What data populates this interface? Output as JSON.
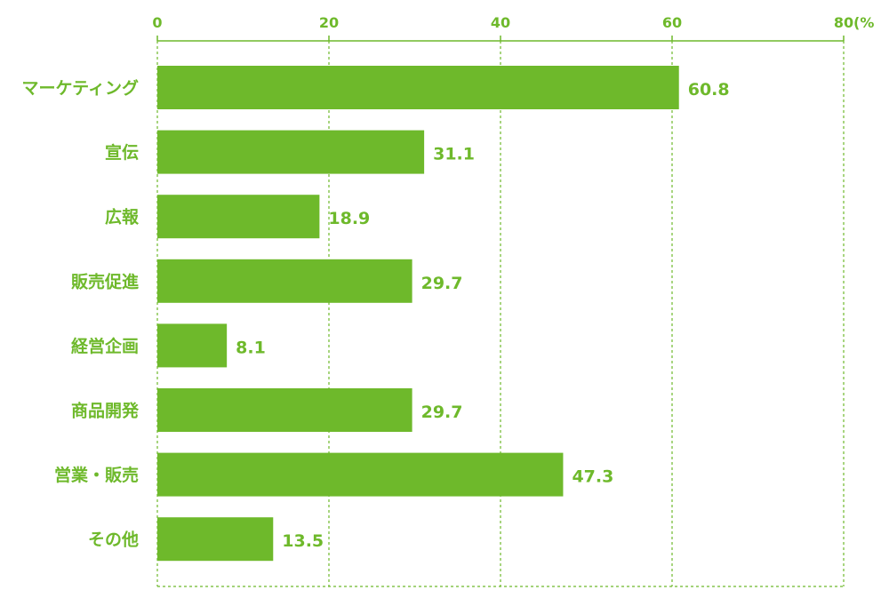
{
  "colors": {
    "accent": "#6eb92b",
    "bar": "#6eb92b",
    "text": "#6eb92b",
    "background": "#ffffff"
  },
  "chart_data": {
    "type": "bar",
    "orientation": "horizontal",
    "title": "",
    "xlabel": "",
    "ylabel": "",
    "unit_label": "(%",
    "xlim": [
      0,
      80
    ],
    "xticks": [
      0,
      20,
      40,
      60,
      80
    ],
    "grid": true,
    "legend": "none",
    "categories": [
      "マーケティング",
      "宣伝",
      "広報",
      "販売促進",
      "経営企画",
      "商品開発",
      "営業・販売",
      "その他"
    ],
    "values": [
      60.8,
      31.1,
      18.9,
      29.7,
      8.1,
      29.7,
      47.3,
      13.5
    ],
    "value_labels": [
      "60.8",
      "31.1",
      "18.9",
      "29.7",
      "8.1",
      "29.7",
      "47.3",
      "13.5"
    ]
  }
}
